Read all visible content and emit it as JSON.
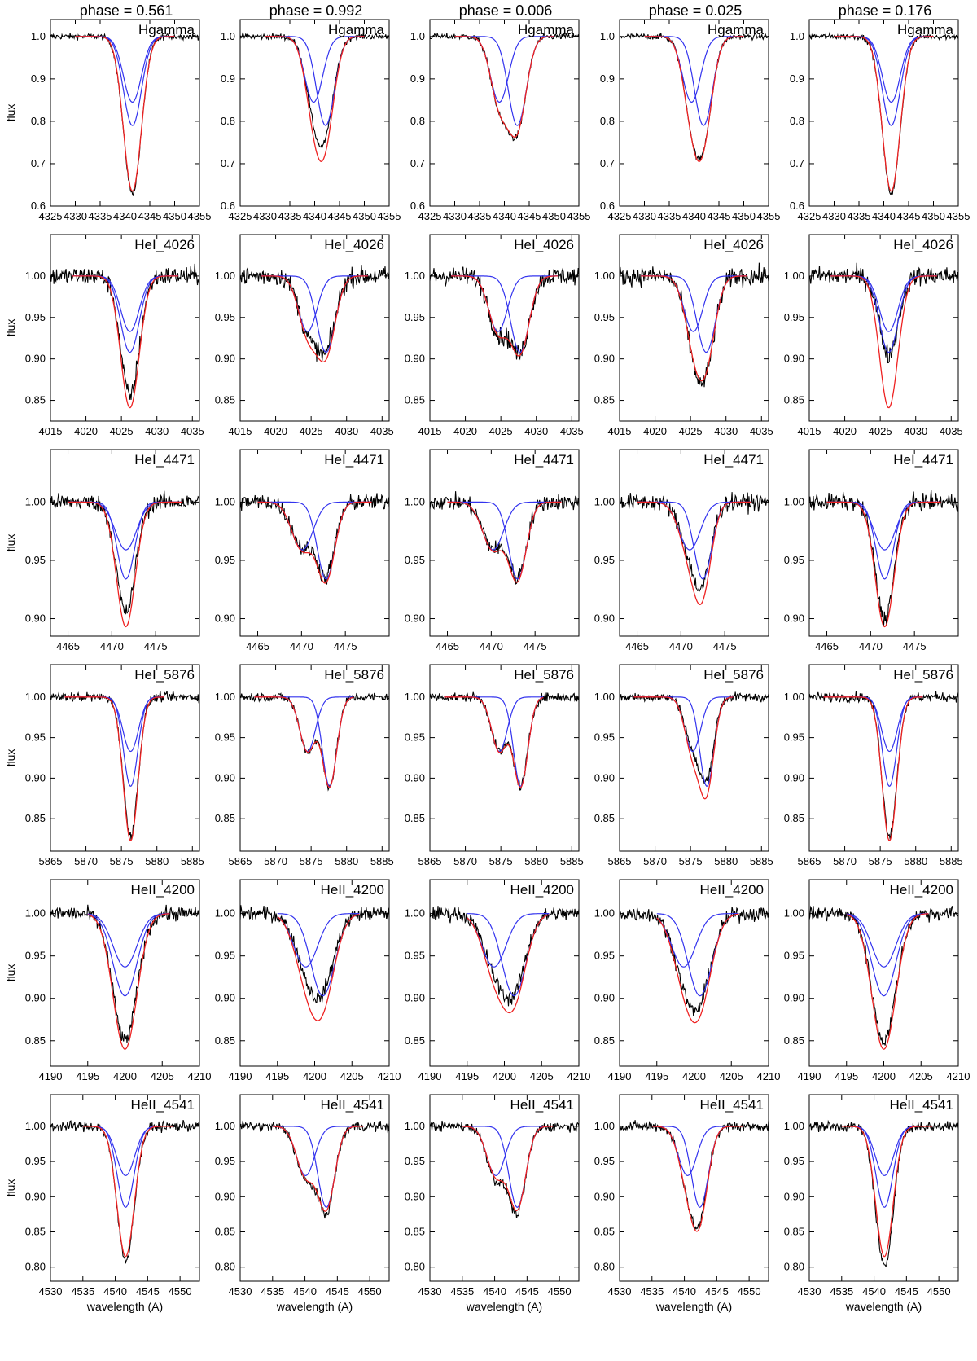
{
  "colors": {
    "observed": "#000000",
    "component": "#3333ee",
    "composite": "#ee2222"
  },
  "column_titles": [
    "phase = 0.561",
    "phase = 0.992",
    "phase = 0.006",
    "phase = 0.025",
    "phase = 0.176"
  ],
  "ylabel": "flux",
  "xlabel": "wavelength (A)",
  "chart_data": {
    "type": "line",
    "layout": "grid of 6 rows x 5 columns",
    "phases": [
      0.561,
      0.992,
      0.006,
      0.025,
      0.176
    ],
    "rows": [
      {
        "label": "Hgamma",
        "xlim": [
          4325,
          4355
        ],
        "xticks": [
          4325,
          4330,
          4335,
          4340,
          4345,
          4350,
          4355
        ],
        "ylim": [
          0.6,
          1.04
        ],
        "yticks": [
          "0.6",
          "0.7",
          "0.8",
          "0.9",
          "1.0"
        ],
        "model_range": [
          4330,
          4350
        ],
        "width1": 1.8,
        "width2": 1.8,
        "noise": 0.005,
        "panels": [
          {
            "c1": 4341.5,
            "d1": 0.155,
            "c2": 4341.5,
            "d2": 0.21,
            "obs_min": 0.63
          },
          {
            "c1": 4339.8,
            "d1": 0.155,
            "c2": 4342.2,
            "d2": 0.21,
            "obs_min": 0.74
          },
          {
            "c1": 4339.0,
            "d1": 0.155,
            "c2": 4342.6,
            "d2": 0.21,
            "obs_min": 0.76
          },
          {
            "c1": 4339.5,
            "d1": 0.155,
            "c2": 4341.9,
            "d2": 0.21,
            "obs_min": 0.71
          },
          {
            "c1": 4341.5,
            "d1": 0.155,
            "c2": 4341.5,
            "d2": 0.21,
            "obs_min": 0.63
          }
        ]
      },
      {
        "label": "HeI_4026",
        "xlim": [
          4015,
          4036
        ],
        "xticks": [
          4015,
          4020,
          4025,
          4030,
          4035
        ],
        "ylim": [
          0.825,
          1.05
        ],
        "yticks": [
          "0.85",
          "0.90",
          "0.95",
          "1.00"
        ],
        "model_range": [
          4018,
          4033
        ],
        "width1": 1.3,
        "width2": 1.3,
        "noise": 0.008,
        "panels": [
          {
            "c1": 4026.2,
            "d1": 0.067,
            "c2": 4026.2,
            "d2": 0.092,
            "obs_min": 0.855
          },
          {
            "c1": 4024.5,
            "d1": 0.067,
            "c2": 4027.1,
            "d2": 0.092,
            "obs_min": 0.905
          },
          {
            "c1": 4024.6,
            "d1": 0.067,
            "c2": 4027.7,
            "d2": 0.092,
            "obs_min": 0.905
          },
          {
            "c1": 4025.4,
            "d1": 0.067,
            "c2": 4027.2,
            "d2": 0.092,
            "obs_min": 0.87
          },
          {
            "c1": 4026.2,
            "d1": 0.067,
            "c2": 4026.2,
            "d2": 0.092,
            "obs_min": 0.905
          }
        ]
      },
      {
        "label": "HeI_4471",
        "xlim": [
          4463,
          4480
        ],
        "xticks": [
          4465,
          4470,
          4475
        ],
        "ylim": [
          0.885,
          1.045
        ],
        "yticks": [
          "0.90",
          "0.95",
          "1.00"
        ],
        "model_range": [
          4465,
          4478
        ],
        "width1": 1.2,
        "width2": 1.0,
        "noise": 0.005,
        "panels": [
          {
            "c1": 4471.6,
            "d1": 0.041,
            "c2": 4471.6,
            "d2": 0.066,
            "obs_min": 0.905
          },
          {
            "c1": 4470.1,
            "d1": 0.041,
            "c2": 4472.8,
            "d2": 0.066,
            "obs_min": 0.935
          },
          {
            "c1": 4470.2,
            "d1": 0.041,
            "c2": 4473.0,
            "d2": 0.066,
            "obs_min": 0.935
          },
          {
            "c1": 4471.0,
            "d1": 0.041,
            "c2": 4472.5,
            "d2": 0.066,
            "obs_min": 0.925
          },
          {
            "c1": 4471.6,
            "d1": 0.041,
            "c2": 4471.6,
            "d2": 0.066,
            "obs_min": 0.9
          }
        ]
      },
      {
        "label": "HeI_5876",
        "xlim": [
          5865,
          5886
        ],
        "xticks": [
          5865,
          5870,
          5875,
          5880,
          5885
        ],
        "ylim": [
          0.81,
          1.04
        ],
        "yticks": [
          "0.85",
          "0.90",
          "0.95",
          "1.00"
        ],
        "model_range": [
          5867,
          5881
        ],
        "width1": 1.1,
        "width2": 1.0,
        "noise": 0.004,
        "panels": [
          {
            "c1": 5876.3,
            "d1": 0.067,
            "c2": 5876.3,
            "d2": 0.11,
            "obs_min": 0.83
          },
          {
            "c1": 5874.5,
            "d1": 0.067,
            "c2": 5877.6,
            "d2": 0.11,
            "obs_min": 0.89
          },
          {
            "c1": 5874.8,
            "d1": 0.067,
            "c2": 5877.8,
            "d2": 0.11,
            "obs_min": 0.89
          },
          {
            "c1": 5875.3,
            "d1": 0.067,
            "c2": 5877.3,
            "d2": 0.11,
            "obs_min": 0.895
          },
          {
            "c1": 5876.3,
            "d1": 0.067,
            "c2": 5876.3,
            "d2": 0.11,
            "obs_min": 0.83
          }
        ]
      },
      {
        "label": "HeII_4200",
        "xlim": [
          4190,
          4210
        ],
        "xticks": [
          4190,
          4195,
          4200,
          4205,
          4210
        ],
        "ylim": [
          0.82,
          1.04
        ],
        "yticks": [
          "0.85",
          "0.90",
          "0.95",
          "1.00"
        ],
        "model_range": [
          4195,
          4206
        ],
        "width1": 1.6,
        "width2": 1.6,
        "noise": 0.006,
        "panels": [
          {
            "c1": 4200.0,
            "d1": 0.063,
            "c2": 4200.0,
            "d2": 0.097,
            "obs_min": 0.85
          },
          {
            "c1": 4198.8,
            "d1": 0.063,
            "c2": 4201.1,
            "d2": 0.097,
            "obs_min": 0.9
          },
          {
            "c1": 4198.6,
            "d1": 0.063,
            "c2": 4201.3,
            "d2": 0.097,
            "obs_min": 0.9
          },
          {
            "c1": 4198.6,
            "d1": 0.063,
            "c2": 4200.8,
            "d2": 0.097,
            "obs_min": 0.885
          },
          {
            "c1": 4200.0,
            "d1": 0.063,
            "c2": 4200.0,
            "d2": 0.097,
            "obs_min": 0.85
          }
        ]
      },
      {
        "label": "HeII_4541",
        "xlim": [
          4530,
          4553
        ],
        "xticks": [
          4530,
          4535,
          4540,
          4545,
          4550
        ],
        "ylim": [
          0.78,
          1.045
        ],
        "yticks": [
          "0.80",
          "0.85",
          "0.90",
          "0.95",
          "1.00"
        ],
        "model_range": [
          4535,
          4549
        ],
        "width1": 1.4,
        "width2": 1.3,
        "noise": 0.005,
        "panels": [
          {
            "c1": 4541.6,
            "d1": 0.07,
            "c2": 4541.6,
            "d2": 0.115,
            "obs_min": 0.81
          },
          {
            "c1": 4540.1,
            "d1": 0.07,
            "c2": 4543.3,
            "d2": 0.115,
            "obs_min": 0.875
          },
          {
            "c1": 4540.2,
            "d1": 0.07,
            "c2": 4543.5,
            "d2": 0.115,
            "obs_min": 0.875
          },
          {
            "c1": 4540.5,
            "d1": 0.07,
            "c2": 4542.4,
            "d2": 0.115,
            "obs_min": 0.855
          },
          {
            "c1": 4541.6,
            "d1": 0.07,
            "c2": 4541.6,
            "d2": 0.115,
            "obs_min": 0.8
          }
        ]
      }
    ]
  }
}
